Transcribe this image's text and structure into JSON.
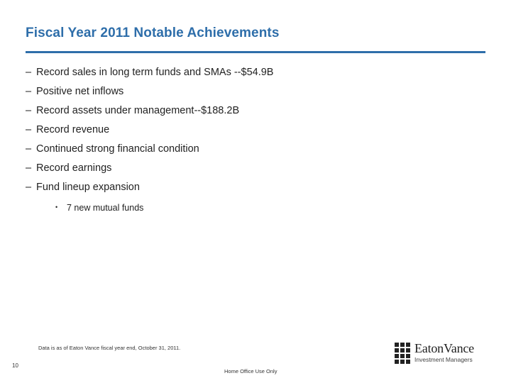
{
  "slide": {
    "title": "Fiscal Year 2011 Notable Achievements",
    "bullets": [
      {
        "marker": "–",
        "text": "Record sales in long term funds and SMAs --$54.9B"
      },
      {
        "marker": "–",
        "text": "Positive net inflows"
      },
      {
        "marker": "–",
        "text": "Record assets under management--$188.2B"
      },
      {
        "marker": "–",
        "text": "Record revenue"
      },
      {
        "marker": "–",
        "text": "Continued strong financial condition"
      },
      {
        "marker": "–",
        "text": "Record earnings"
      },
      {
        "marker": "–",
        "text": "Fund lineup expansion"
      }
    ],
    "sub_bullets": [
      {
        "marker": "•",
        "text": "7 new mutual funds"
      }
    ],
    "footnote": "Data is as of Eaton Vance fiscal year end, October 31, 2011.",
    "page_number": "10",
    "confidentiality": "Home Office Use Only"
  },
  "logo": {
    "name": "EatonVance",
    "tagline": "Investment Managers"
  },
  "colors": {
    "title": "#2e6eaa",
    "rule": "#2e6eaa",
    "text": "#222222"
  }
}
